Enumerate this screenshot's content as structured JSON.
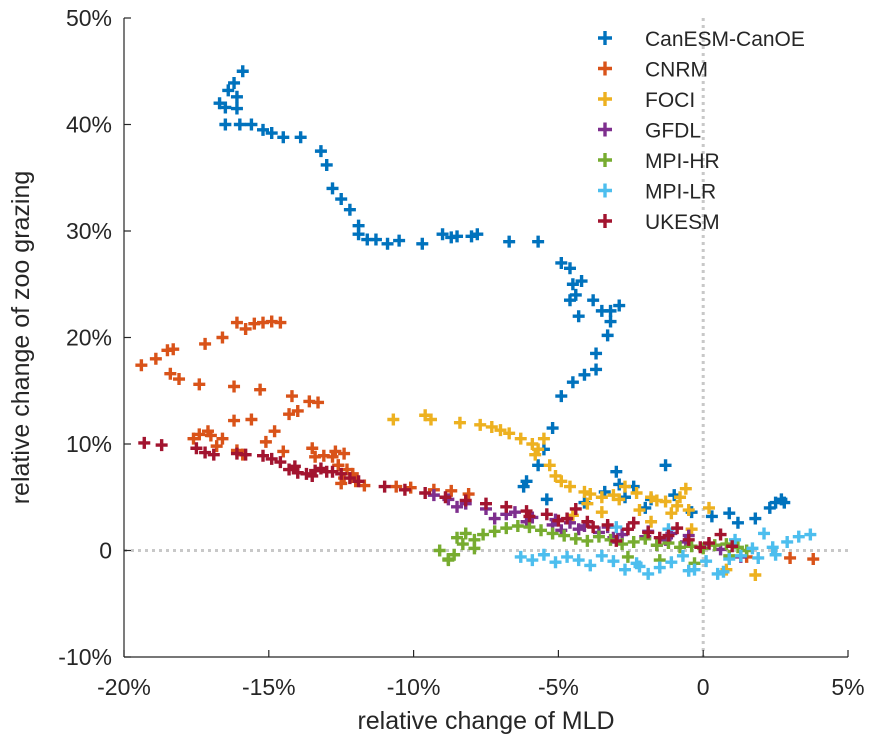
{
  "chart_data": {
    "type": "scatter",
    "title": "",
    "xlabel": "relative change of MLD",
    "ylabel": "relative change of zoo grazing",
    "xlim": [
      -20,
      5
    ],
    "ylim": [
      -10,
      50
    ],
    "xticks": [
      -20,
      -15,
      -10,
      -5,
      0,
      5
    ],
    "yticks": [
      -10,
      0,
      10,
      20,
      30,
      40,
      50
    ],
    "xtick_labels": [
      "-20%",
      "-15%",
      "-10%",
      "-5%",
      "0",
      "5%"
    ],
    "ytick_labels": [
      "-10%",
      "0",
      "10%",
      "20%",
      "30%",
      "40%",
      "50%"
    ],
    "reference_lines": {
      "x": 0,
      "y": 0,
      "style": "dotted"
    },
    "grid": false,
    "legend_position": "top-right",
    "series": [
      {
        "name": "CanESM-CanOE",
        "color": "#0072BD",
        "x": [
          -15.9,
          -16.2,
          -16.4,
          -16.7,
          -16.5,
          -16.1,
          -16.1,
          -16.5,
          -16.0,
          -15.6,
          -15.2,
          -14.9,
          -14.5,
          -13.9,
          -13.2,
          -13.0,
          -12.8,
          -12.5,
          -12.2,
          -11.9,
          -11.9,
          -11.6,
          -11.3,
          -10.9,
          -10.5,
          -9.7,
          -9.0,
          -8.7,
          -8.5,
          -8.0,
          -7.8,
          -6.7,
          -5.7,
          -4.9,
          -4.6,
          -4.5,
          -4.2,
          -4.4,
          -4.6,
          -4.3,
          -3.8,
          -3.5,
          -3.2,
          -2.9,
          -3.2,
          -3.3,
          -3.7,
          -3.7,
          -4.1,
          -4.5,
          -4.9,
          -5.2,
          -5.5,
          -5.7,
          -6.2,
          -6.1,
          -5.4,
          -4.1,
          -3.4,
          -3.0,
          -2.9,
          -2.7,
          -2.4,
          -2.0,
          -1.8,
          -1.3,
          -1.0,
          -0.4,
          0.3,
          0.9,
          1.2,
          1.8,
          2.3,
          2.7,
          2.5,
          2.8
        ],
        "y": [
          45.0,
          43.9,
          43.2,
          42.0,
          41.6,
          42.6,
          41.5,
          40.0,
          40.0,
          40.0,
          39.5,
          39.2,
          38.8,
          38.8,
          37.5,
          36.2,
          34.0,
          33.0,
          32.0,
          30.5,
          29.7,
          29.2,
          29.2,
          28.8,
          29.1,
          28.8,
          29.7,
          29.4,
          29.5,
          29.5,
          29.7,
          29.0,
          29.0,
          27.0,
          26.5,
          25.0,
          25.3,
          24.0,
          23.5,
          22.0,
          23.5,
          22.5,
          22.5,
          23.0,
          21.5,
          20.2,
          18.5,
          17.0,
          16.5,
          15.8,
          14.5,
          11.5,
          9.5,
          8.0,
          6.0,
          6.5,
          4.8,
          4.5,
          5.5,
          7.4,
          6.2,
          5.0,
          6.0,
          4.0,
          4.8,
          8.0,
          5.2,
          3.6,
          3.2,
          3.5,
          2.6,
          3.0,
          4.0,
          4.8,
          4.5,
          4.5
        ]
      },
      {
        "name": "CNRM",
        "color": "#D95319",
        "x": [
          -19.4,
          -18.9,
          -18.5,
          -18.3,
          -18.1,
          -18.4,
          -17.2,
          -16.6,
          -16.1,
          -15.8,
          -15.5,
          -15.2,
          -14.9,
          -14.6,
          -17.4,
          -16.2,
          -15.3,
          -14.2,
          -14.3,
          -13.6,
          -13.3,
          -17.4,
          -17.0,
          -16.6,
          -16.2,
          -15.6,
          -14.8,
          -14.0,
          -13.5,
          -13.1,
          -12.7,
          -12.6,
          -12.3,
          -12.1,
          -12.4,
          -12.5,
          -17.6,
          -17.1,
          -16.8,
          -16.1,
          -15.9,
          -15.1,
          -14.5,
          -13.4,
          -12.8,
          -12.4,
          -12.6,
          -12.0,
          -11.7,
          -10.6,
          -10.1,
          -9.3,
          -8.7,
          -8.1,
          1.5,
          3.0,
          3.8
        ],
        "y": [
          17.4,
          18.0,
          18.8,
          18.9,
          16.1,
          16.6,
          19.4,
          20.0,
          21.4,
          20.8,
          21.3,
          21.4,
          21.5,
          21.4,
          15.6,
          15.4,
          15.1,
          14.5,
          12.8,
          14.0,
          13.9,
          10.9,
          10.8,
          10.5,
          12.2,
          12.3,
          11.2,
          13.1,
          9.6,
          8.9,
          9.3,
          8.0,
          7.6,
          7.2,
          6.8,
          6.3,
          10.5,
          11.2,
          9.8,
          9.4,
          9.0,
          10.2,
          9.3,
          8.8,
          8.8,
          9.1,
          8.0,
          6.5,
          6.1,
          6.0,
          5.9,
          5.7,
          5.6,
          5.3,
          -0.6,
          -0.7,
          -0.8
        ]
      },
      {
        "name": "FOCI",
        "color": "#EDB120",
        "x": [
          -10.7,
          -9.6,
          -9.4,
          -8.4,
          -7.7,
          -7.3,
          -7.0,
          -6.7,
          -6.3,
          -5.9,
          -5.7,
          -5.5,
          -5.8,
          -5.3,
          -5.1,
          -4.9,
          -4.6,
          -4.1,
          -3.9,
          -3.5,
          -3.1,
          -2.7,
          -2.3,
          -1.8,
          -1.3,
          -0.9,
          -0.5,
          0.2,
          -0.6,
          -2.2,
          -1.6,
          -0.8,
          -3.5,
          -4.0,
          -2.9,
          -4.5,
          -1.1,
          -1.8,
          -0.4,
          1.8,
          0.8
        ],
        "y": [
          12.3,
          12.7,
          12.3,
          12.0,
          11.8,
          11.6,
          11.3,
          11.0,
          10.5,
          10.0,
          9.5,
          10.5,
          9.0,
          8.0,
          7.0,
          6.5,
          6.0,
          5.5,
          5.3,
          5.0,
          5.2,
          6.0,
          5.4,
          5.0,
          4.6,
          4.2,
          3.8,
          4.0,
          5.8,
          3.8,
          4.7,
          5.0,
          3.6,
          4.4,
          4.8,
          3.3,
          3.5,
          2.7,
          2.0,
          -2.3,
          -1.8
        ]
      },
      {
        "name": "GFDL",
        "color": "#7E2F8E",
        "x": [
          -9.3,
          -8.8,
          -8.2,
          -7.5,
          -6.8,
          -5.9,
          -5.1,
          -4.6,
          -4.1,
          -3.3,
          -2.6,
          -1.9,
          -1.1,
          -0.5,
          -7.2,
          -6.1,
          -5.2,
          -4.3,
          -3.6,
          -2.8,
          -2.0,
          -1.3,
          -0.6,
          0.2,
          -8.5,
          -6.5,
          -4.9,
          -3.1,
          -1.6,
          0.6,
          1.3
        ],
        "y": [
          5.2,
          4.8,
          4.4,
          3.9,
          3.4,
          3.1,
          2.9,
          2.6,
          2.3,
          2.2,
          2.0,
          1.8,
          1.6,
          1.4,
          3.0,
          2.7,
          2.4,
          2.0,
          1.7,
          1.5,
          1.3,
          1.0,
          0.8,
          0.6,
          4.1,
          3.6,
          1.9,
          1.2,
          0.5,
          0.1,
          -0.6
        ]
      },
      {
        "name": "MPI-HR",
        "color": "#77AC30",
        "x": [
          -9.1,
          -8.8,
          -8.5,
          -8.2,
          -7.9,
          -7.6,
          -7.2,
          -6.8,
          -6.4,
          -6.0,
          -5.6,
          -5.2,
          -8.6,
          -8.3,
          -7.9,
          -4.8,
          -4.4,
          -4.0,
          -3.6,
          -3.2,
          -2.8,
          -2.4,
          -2.0,
          -1.6,
          -1.2,
          -0.8,
          -0.4,
          0.0,
          0.4,
          0.8,
          1.2,
          1.5,
          -2.6,
          -1.5,
          -0.3,
          0.9,
          -8.8
        ],
        "y": [
          0.0,
          -0.8,
          1.2,
          1.6,
          1.0,
          1.5,
          1.8,
          2.1,
          2.3,
          2.2,
          1.9,
          1.6,
          -0.4,
          0.6,
          0.2,
          1.4,
          1.1,
          0.9,
          1.3,
          1.0,
          0.6,
          0.8,
          1.1,
          0.5,
          0.7,
          0.3,
          0.4,
          0.2,
          0.5,
          0.6,
          0.3,
          0.0,
          -0.6,
          -0.9,
          -1.2,
          -0.5,
          -0.9
        ]
      },
      {
        "name": "MPI-LR",
        "color": "#4DBEEE",
        "x": [
          -6.3,
          -5.9,
          -5.5,
          -5.1,
          -4.7,
          -4.3,
          -3.9,
          -3.5,
          -3.1,
          -2.7,
          -2.3,
          -1.9,
          -1.5,
          -1.1,
          -0.7,
          -0.3,
          0.1,
          0.5,
          0.9,
          1.3,
          1.7,
          2.1,
          2.5,
          2.9,
          3.3,
          3.7,
          -3.0,
          -1.2,
          1.1,
          1.9,
          -2.2,
          -0.5,
          0.7,
          2.4
        ],
        "y": [
          -0.6,
          -0.9,
          -0.4,
          -1.1,
          -0.6,
          -0.9,
          -1.4,
          -0.5,
          -1.0,
          -1.8,
          -1.2,
          -2.2,
          -1.6,
          -1.1,
          -0.5,
          -1.8,
          -1.0,
          -2.2,
          -0.8,
          -0.5,
          0.2,
          1.6,
          -0.4,
          0.8,
          1.3,
          1.5,
          2.2,
          2.0,
          1.0,
          -0.7,
          -1.5,
          -1.9,
          -2.0,
          0.3
        ]
      },
      {
        "name": "UKESM",
        "color": "#A2142F",
        "x": [
          -19.3,
          -18.7,
          -17.5,
          -17.2,
          -16.9,
          -16.1,
          -15.8,
          -15.2,
          -14.9,
          -14.6,
          -14.3,
          -14.0,
          -13.7,
          -13.4,
          -13.0,
          -12.5,
          -12.2,
          -11.9,
          -11.0,
          -10.3,
          -9.6,
          -8.9,
          -8.2,
          -7.5,
          -6.8,
          -6.1,
          -5.4,
          -4.7,
          -4.0,
          -3.3,
          -2.6,
          -1.9,
          -1.2,
          -0.5,
          0.2,
          -13.2,
          -12.8,
          -14.1,
          -13.5,
          -4.4,
          -3.8,
          -2.4,
          -1.5,
          -0.9,
          -0.1,
          0.6,
          1.0,
          -6.0,
          -5.0,
          -3.0
        ],
        "y": [
          10.1,
          9.9,
          9.6,
          9.2,
          9.0,
          9.1,
          9.0,
          8.9,
          8.6,
          8.3,
          7.6,
          7.3,
          7.2,
          7.5,
          7.4,
          7.2,
          6.8,
          6.5,
          6.0,
          5.7,
          5.4,
          5.0,
          4.7,
          4.4,
          4.1,
          3.7,
          3.4,
          3.0,
          2.7,
          2.4,
          2.0,
          1.7,
          1.4,
          1.0,
          0.7,
          7.7,
          7.4,
          7.9,
          7.0,
          3.9,
          2.2,
          2.6,
          1.2,
          2.1,
          0.3,
          1.5,
          0.4,
          3.2,
          2.8,
          0.9
        ]
      }
    ]
  }
}
